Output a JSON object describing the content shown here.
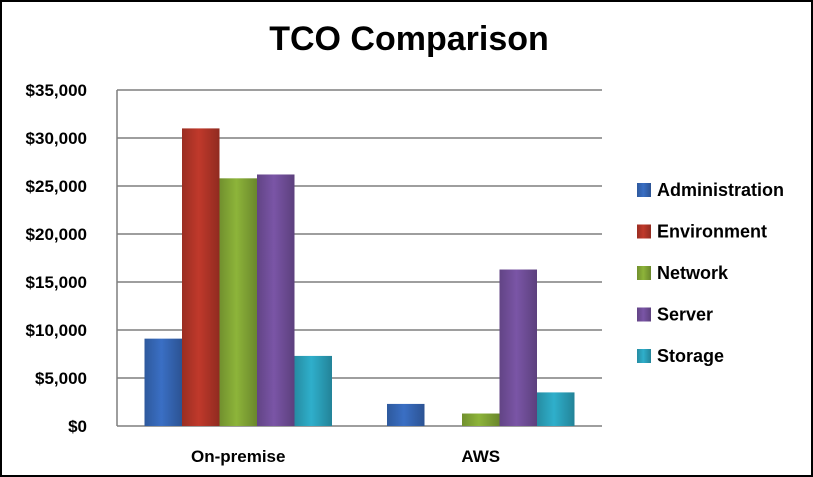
{
  "chart_data": {
    "type": "bar",
    "title": "TCO Comparison",
    "xlabel": "",
    "ylabel": "",
    "categories": [
      "On-premise",
      "AWS"
    ],
    "ylim": [
      0,
      35000
    ],
    "yticks": [
      "$0",
      "$5,000",
      "$10,000",
      "$15,000",
      "$20,000",
      "$25,000",
      "$30,000",
      "$35,000"
    ],
    "ytick_values": [
      0,
      5000,
      10000,
      15000,
      20000,
      25000,
      30000,
      35000
    ],
    "grid": true,
    "legend_position": "right",
    "series": [
      {
        "name": "Administration",
        "color": "#3A6FC4",
        "values": [
          9100,
          2300
        ]
      },
      {
        "name": "Environment",
        "color": "#C0392B",
        "values": [
          31000,
          0
        ]
      },
      {
        "name": "Network",
        "color": "#8DB43A",
        "values": [
          25800,
          1300
        ]
      },
      {
        "name": "Server",
        "color": "#7A55A6",
        "values": [
          26200,
          16300
        ]
      },
      {
        "name": "Storage",
        "color": "#2FAFCB",
        "values": [
          7300,
          3500
        ]
      }
    ]
  }
}
